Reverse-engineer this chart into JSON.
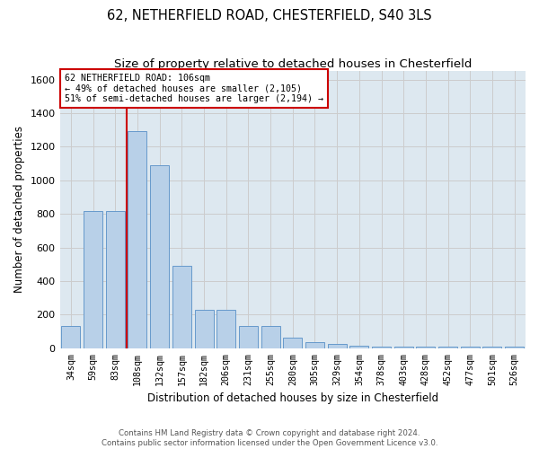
{
  "title": "62, NETHERFIELD ROAD, CHESTERFIELD, S40 3LS",
  "subtitle": "Size of property relative to detached houses in Chesterfield",
  "xlabel": "Distribution of detached houses by size in Chesterfield",
  "ylabel": "Number of detached properties",
  "categories": [
    "34sqm",
    "59sqm",
    "83sqm",
    "108sqm",
    "132sqm",
    "157sqm",
    "182sqm",
    "206sqm",
    "231sqm",
    "255sqm",
    "280sqm",
    "305sqm",
    "329sqm",
    "354sqm",
    "378sqm",
    "403sqm",
    "428sqm",
    "452sqm",
    "477sqm",
    "501sqm",
    "526sqm"
  ],
  "values": [
    135,
    815,
    815,
    1295,
    1090,
    490,
    230,
    230,
    130,
    130,
    65,
    38,
    25,
    15,
    8,
    8,
    8,
    8,
    8,
    8,
    12
  ],
  "bar_color": "#b8d0e8",
  "bar_edge_color": "#6699cc",
  "vline_color": "#cc0000",
  "vline_x": 3,
  "annotation_text": "62 NETHERFIELD ROAD: 106sqm\n← 49% of detached houses are smaller (2,105)\n51% of semi-detached houses are larger (2,194) →",
  "annotation_box_color": "#ffffff",
  "annotation_box_edge": "#cc0000",
  "ylim": [
    0,
    1650
  ],
  "yticks": [
    0,
    200,
    400,
    600,
    800,
    1000,
    1200,
    1400,
    1600
  ],
  "grid_color": "#cccccc",
  "background_color": "#dde8f0",
  "title_fontsize": 10.5,
  "subtitle_fontsize": 9.5,
  "xlabel_fontsize": 8.5,
  "ylabel_fontsize": 8.5,
  "footer_text": "Contains HM Land Registry data © Crown copyright and database right 2024.\nContains public sector information licensed under the Open Government Licence v3.0."
}
